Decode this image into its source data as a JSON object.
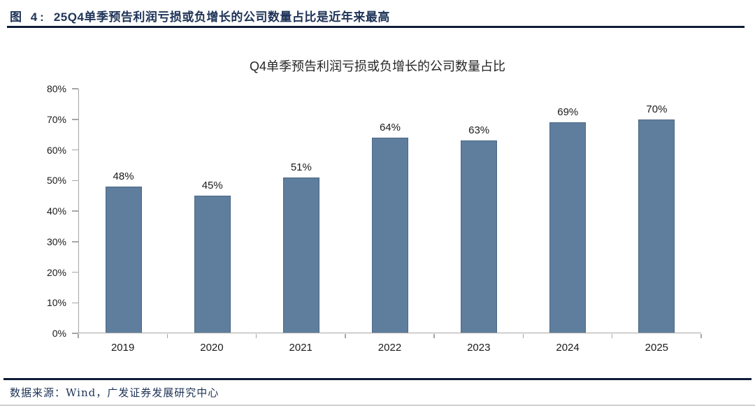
{
  "header": {
    "figure_label": "图 4:",
    "figure_title": "25Q4单季预告利润亏损或负增长的公司数量占比是近年来最高"
  },
  "footer": {
    "source_text": "数据来源：Wind，广发证券发展研究中心"
  },
  "colors": {
    "bar": "#5f7e9e",
    "axis": "#a6a6a6",
    "heading": "#1e3357",
    "rule": "#0f1c38"
  },
  "chart_data": {
    "type": "bar",
    "title": "Q4单季预告利润亏损或负增长的公司数量占比",
    "categories": [
      "2019",
      "2020",
      "2021",
      "2022",
      "2023",
      "2024",
      "2025"
    ],
    "values": [
      48,
      45,
      51,
      64,
      63,
      69,
      70
    ],
    "data_labels": [
      "48%",
      "45%",
      "51%",
      "64%",
      "63%",
      "69%",
      "70%"
    ],
    "xlabel": "",
    "ylabel": "",
    "ylim": [
      0,
      80
    ],
    "y_tick_labels": [
      "0%",
      "10%",
      "20%",
      "30%",
      "40%",
      "50%",
      "60%",
      "70%",
      "80%"
    ],
    "grid": false,
    "legend_position": "none",
    "bar_color": "#5f7e9e"
  }
}
